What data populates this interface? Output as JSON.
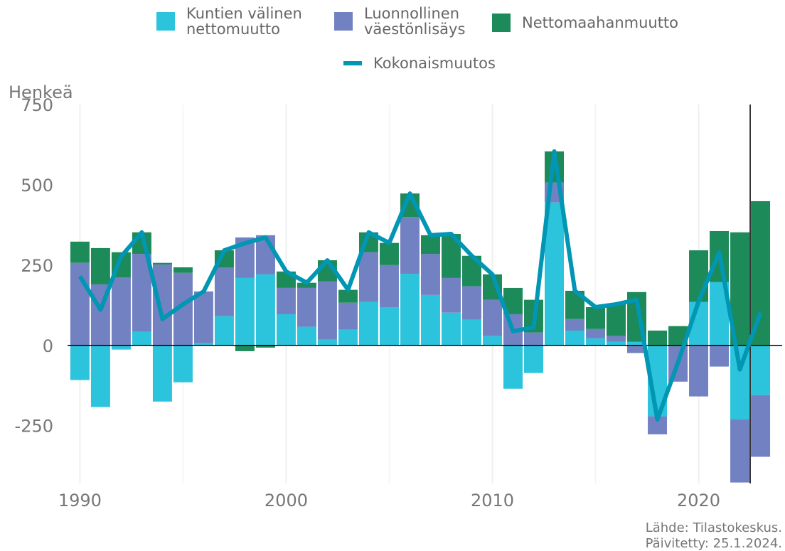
{
  "chart_data": {
    "type": "stacked-bar-line",
    "y_axis_label": "Henkeä",
    "x": [
      1990,
      1991,
      1992,
      1993,
      1994,
      1995,
      1996,
      1997,
      1998,
      1999,
      2000,
      2001,
      2002,
      2003,
      2004,
      2005,
      2006,
      2007,
      2008,
      2009,
      2010,
      2011,
      2012,
      2013,
      2014,
      2015,
      2016,
      2017,
      2018,
      2019,
      2020,
      2021,
      2022,
      2023
    ],
    "series": [
      {
        "name": "Kuntien välinen nettomuutto",
        "color": "#2cc3dc",
        "kind": "bar",
        "values": [
          -108,
          -192,
          -13,
          42,
          -175,
          -115,
          7,
          91,
          210,
          221,
          97,
          58,
          18,
          49,
          135,
          119,
          223,
          157,
          102,
          80,
          29,
          -135,
          -86,
          445,
          46,
          22,
          11,
          11,
          -221,
          0,
          135,
          197,
          -230,
          -155
        ]
      },
      {
        "name": "Luonnollinen väestönlisäys",
        "color": "#7281c1",
        "kind": "bar",
        "values": [
          257,
          190,
          212,
          243,
          252,
          226,
          161,
          152,
          126,
          122,
          82,
          121,
          181,
          84,
          155,
          131,
          177,
          128,
          108,
          104,
          113,
          97,
          40,
          62,
          36,
          29,
          18,
          -24,
          -56,
          -113,
          -159,
          -66,
          -197,
          -192
        ]
      },
      {
        "name": "Nettomaahanmuutto",
        "color": "#1d8a5a",
        "kind": "bar",
        "values": [
          66,
          113,
          78,
          67,
          5,
          17,
          0,
          53,
          -18,
          -7,
          51,
          16,
          66,
          40,
          62,
          69,
          73,
          58,
          137,
          95,
          79,
          82,
          102,
          97,
          88,
          68,
          99,
          155,
          46,
          60,
          161,
          159,
          352,
          449
        ]
      },
      {
        "name": "Kokonaismuutos",
        "color": "#0096b4",
        "kind": "line",
        "values": [
          215,
          111,
          277,
          352,
          82,
          128,
          168,
          296,
          318,
          336,
          230,
          195,
          265,
          173,
          352,
          319,
          473,
          343,
          347,
          279,
          221,
          44,
          56,
          604,
          170,
          119,
          128,
          142,
          -231,
          -53,
          137,
          290,
          -75,
          102
        ]
      }
    ],
    "xlim": [
      1989.4,
      2024.05
    ],
    "xticks": [
      1990,
      2000,
      2010,
      2020
    ],
    "x_minor_ticks": [
      1995,
      2005,
      2015
    ],
    "ylim": [
      -430,
      750
    ],
    "yticks": [
      -250,
      0,
      250,
      500,
      750
    ],
    "vline": 2022.5,
    "grid": true,
    "source": [
      "Lähde: Tilastokeskus.",
      "Päivitetty: 25.1.2024."
    ]
  }
}
